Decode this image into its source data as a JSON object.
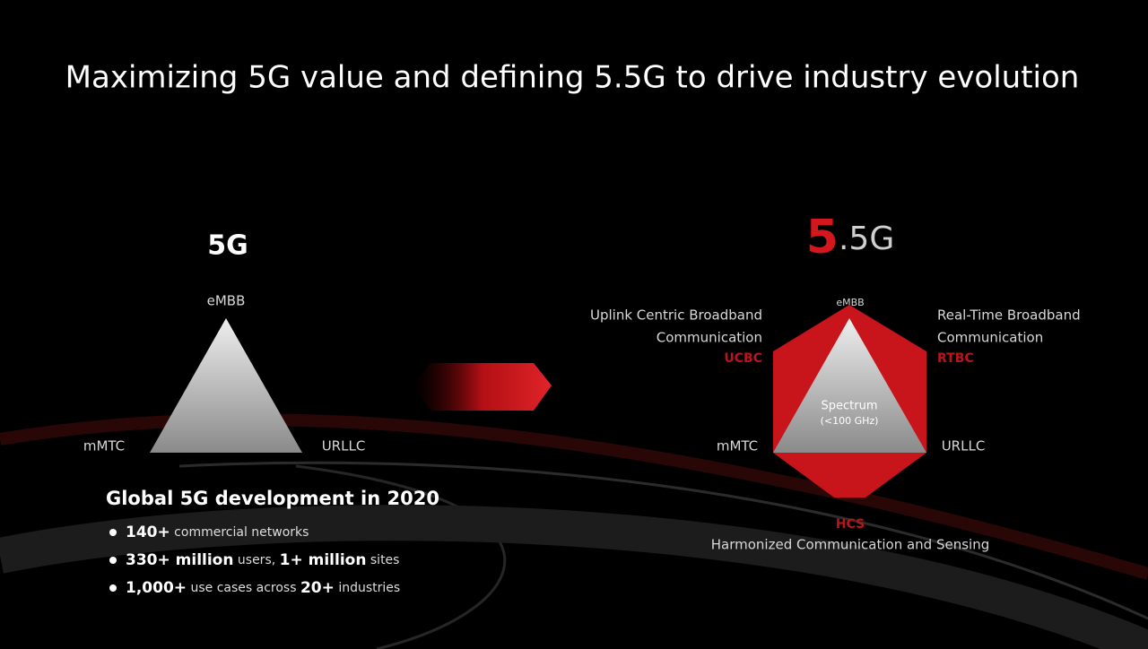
{
  "title": "Maximizing 5G value and defining 5.5G to drive industry evolution",
  "left": {
    "heading": "5G",
    "top": "eMBB",
    "bottom_left": "mMTC",
    "bottom_right": "URLLC",
    "stats_title": "Global 5G development in 2020",
    "bullets": [
      [
        "140+",
        " commercial networks"
      ],
      [
        "330+ million",
        " users, ",
        "1+ million",
        " sites"
      ],
      [
        "1,000+",
        " use cases across ",
        "20+",
        " industries"
      ]
    ]
  },
  "right": {
    "heading_main": "5",
    "heading_rest": ".5G",
    "top": "eMBB",
    "bottom_left": "mMTC",
    "bottom_right": "URLLC",
    "center": [
      "Spectrum",
      "(<100 GHz)"
    ],
    "upper_left": {
      "lines": [
        "Uplink Centric Broadband",
        "Communication"
      ],
      "abbr": "UCBC"
    },
    "upper_right": {
      "lines": [
        "Real-Time Broadband",
        "Communication"
      ],
      "abbr": "RTBC"
    },
    "bottom": {
      "abbr": "HCS",
      "text": "Harmonized Communication and Sensing"
    }
  }
}
